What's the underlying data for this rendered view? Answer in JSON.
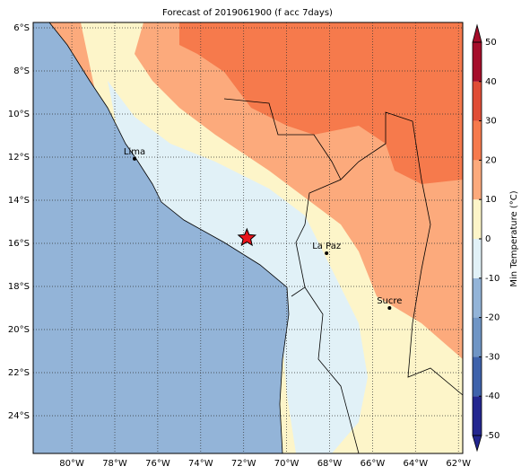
{
  "title": "Forecast of 2019061900 (f acc 7days)",
  "xlim": [
    -81.8,
    -61.8
  ],
  "ylim": [
    -25.75,
    -5.75
  ],
  "xticks": [
    {
      "value": -80,
      "label": "80°W"
    },
    {
      "value": -78,
      "label": "78°W"
    },
    {
      "value": -76,
      "label": "76°W"
    },
    {
      "value": -74,
      "label": "74°W"
    },
    {
      "value": -72,
      "label": "72°W"
    },
    {
      "value": -70,
      "label": "70°W"
    },
    {
      "value": -68,
      "label": "68°W"
    },
    {
      "value": -66,
      "label": "66°W"
    },
    {
      "value": -64,
      "label": "64°W"
    },
    {
      "value": -62,
      "label": "62°W"
    }
  ],
  "yticks": [
    {
      "value": -6,
      "label": "6°S"
    },
    {
      "value": -8,
      "label": "8°S"
    },
    {
      "value": -10,
      "label": "10°S"
    },
    {
      "value": -12,
      "label": "12°S"
    },
    {
      "value": -14,
      "label": "14°S"
    },
    {
      "value": -16,
      "label": "16°S"
    },
    {
      "value": -18,
      "label": "18°S"
    },
    {
      "value": -20,
      "label": "20°S"
    },
    {
      "value": -22,
      "label": "22°S"
    },
    {
      "value": -24,
      "label": "24°S"
    }
  ],
  "cities": [
    {
      "name": "Lima",
      "lon": -77.08,
      "lat": -12.08
    },
    {
      "name": "La Paz",
      "lon": -68.14,
      "lat": -16.46
    },
    {
      "name": "Sucre",
      "lon": -65.21,
      "lat": -19.0
    }
  ],
  "star": {
    "lon": -71.85,
    "lat": -15.75,
    "color": "#e8141c"
  },
  "colorbar": {
    "label": "Min Temperature (°C)",
    "ticks": [
      -50,
      -40,
      -30,
      -20,
      -10,
      0,
      10,
      20,
      30,
      40,
      50
    ],
    "colors": [
      "#23268f",
      "#3e62ab",
      "#6f95c5",
      "#93b4d8",
      "#e1f1f7",
      "#fdf5c9",
      "#fcaa7c",
      "#f67a4c",
      "#e04d36",
      "#a50d2a"
    ]
  }
}
